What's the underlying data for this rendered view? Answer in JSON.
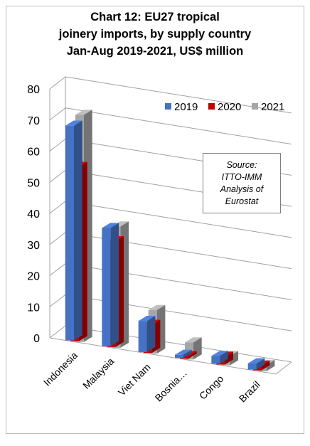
{
  "chart_data": {
    "type": "bar",
    "title_lines": [
      "Chart 12: EU27 tropical",
      "joinery imports, by supply country",
      "Jan-Aug 2019-2021, US$ million"
    ],
    "categories": [
      "Indonesia",
      "Malaysia",
      "Viet Nam",
      "Bosnia…",
      "Congo",
      "Brazil"
    ],
    "series": [
      {
        "name": "2019",
        "values": [
          69,
          38,
          10,
          1,
          2.5,
          2
        ]
      },
      {
        "name": "2020",
        "values": [
          56,
          34,
          9,
          0.8,
          2.5,
          1.5
        ]
      },
      {
        "name": "2021",
        "values": [
          73,
          39,
          14,
          5.5,
          3,
          2
        ]
      }
    ],
    "y_ticks": [
      "0",
      "10",
      "20",
      "30",
      "40",
      "50",
      "60",
      "70",
      "80"
    ],
    "ylim": [
      0,
      80
    ],
    "grid": true,
    "legend_position": "top-right",
    "annotation_lines": [
      "Source:",
      "ITTO-IMM",
      "Analysis of",
      "Eurostat"
    ],
    "colors": {
      "2019": "#4472c4",
      "2020": "#c00000",
      "2021": "#a6a6a6"
    }
  }
}
